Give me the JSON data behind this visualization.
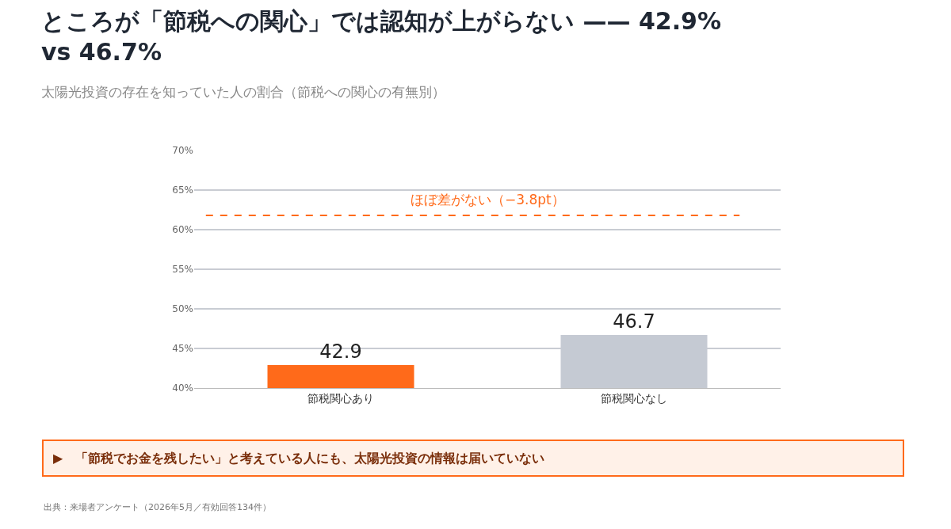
{
  "chart_data": {
    "type": "bar",
    "title": "ところが「節税への関心」では認知が上がらない —— 42.9%\nvs 46.7%",
    "subtitle": "太陽光投資の存在を知っていた人の割合（節税への関心の有無別）",
    "categories": [
      "節税関心あり",
      "節税関心なし"
    ],
    "values": [
      42.9,
      46.7
    ],
    "colors": [
      "#ff6a1a",
      "#c5cad3"
    ],
    "data_labels": true,
    "ylim": [
      40,
      70
    ],
    "yticks": [
      {
        "value": 40,
        "label": "40%"
      },
      {
        "value": 45,
        "label": "45%"
      },
      {
        "value": 50,
        "label": "50%"
      },
      {
        "value": 55,
        "label": "55%"
      },
      {
        "value": 60,
        "label": "60%"
      },
      {
        "value": 65,
        "label": "65%"
      },
      {
        "value": 70,
        "label": "70%"
      }
    ],
    "grid": "y",
    "ref_lines": [
      {
        "axis": "y",
        "value": 61.8,
        "label": "ほぼ差がない（−3.8pt）",
        "color": "#ff6a1a",
        "line_style": "dashed"
      }
    ],
    "annotations": [
      "▶　「節税でお金を残したい」と考えている人にも、太陽光投資の情報は届いていない",
      "出典：来場者アンケート（2026年5月／有効回答134件）"
    ]
  }
}
